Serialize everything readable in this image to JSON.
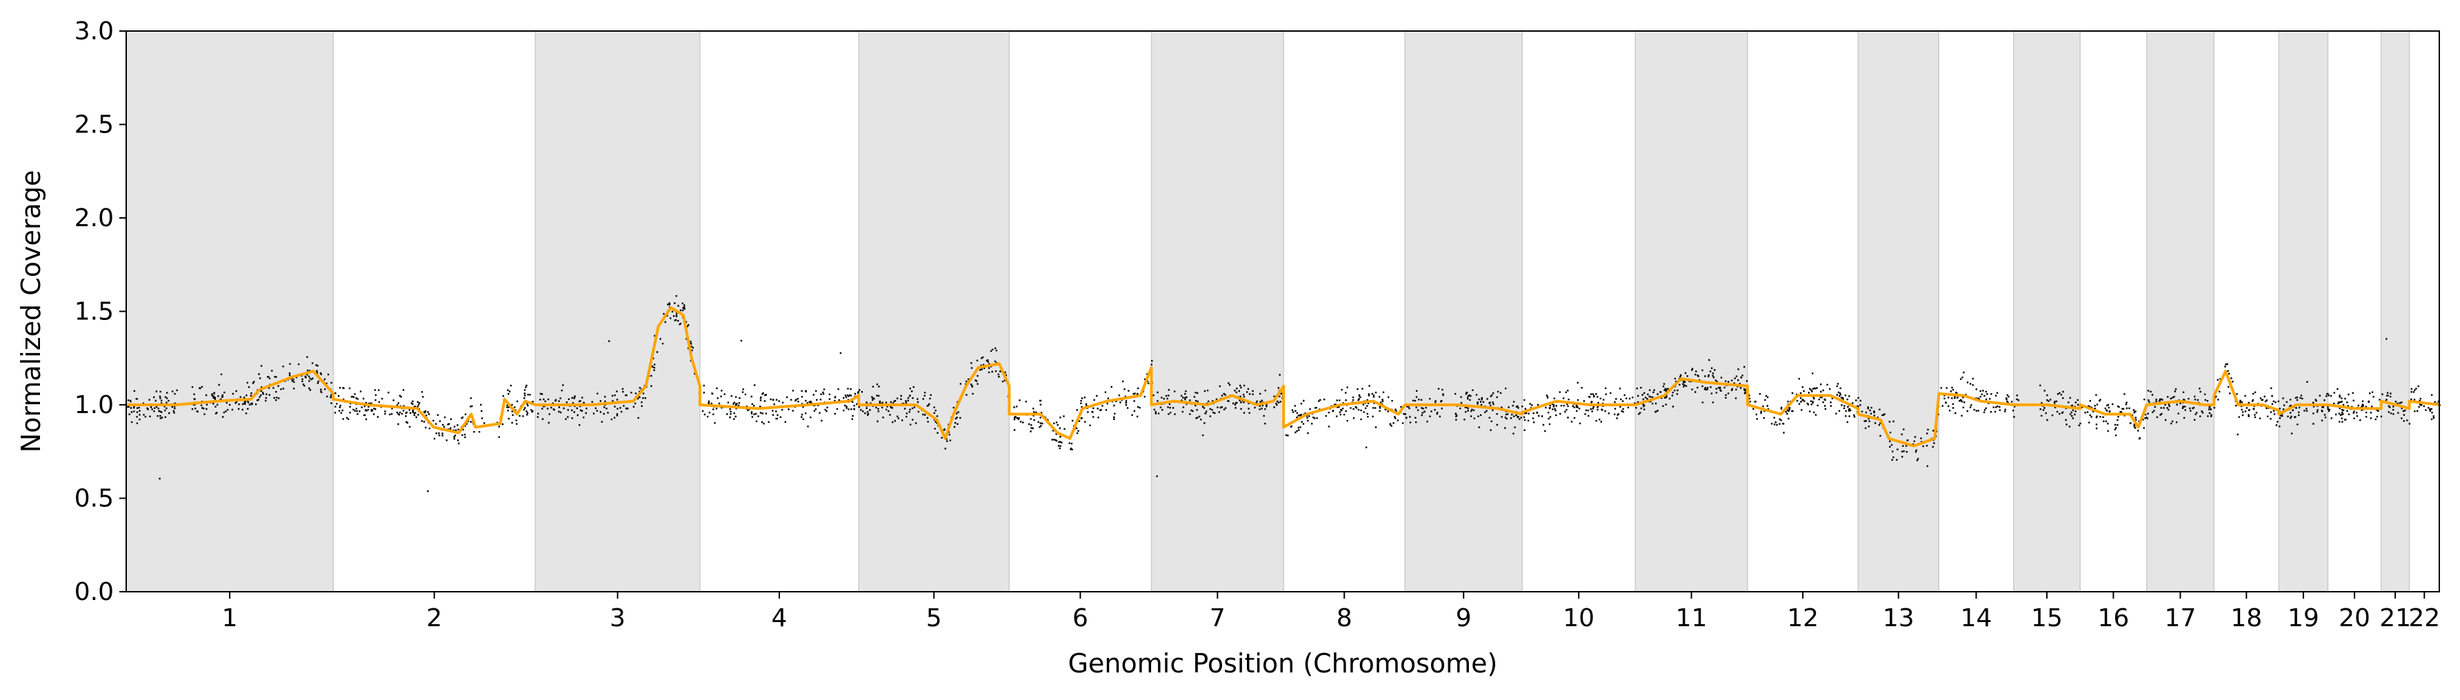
{
  "chart_data": {
    "type": "scatter",
    "title": "",
    "xlabel": "Genomic Position (Chromosome)",
    "ylabel": "Normalized Coverage",
    "ylim": [
      0,
      3
    ],
    "yticks": [
      "0.0",
      "0.5",
      "1.0",
      "1.5",
      "2.0",
      "2.5",
      "3.0"
    ],
    "grid": false,
    "legend": "none",
    "colors": {
      "points": "#000000",
      "smoothed": "#FFA500",
      "shade": "#E5E5E5",
      "shade_edge": "#CCCCCC"
    },
    "chromosomes": [
      {
        "label": "1",
        "length": 249
      },
      {
        "label": "2",
        "length": 243
      },
      {
        "label": "3",
        "length": 198
      },
      {
        "label": "4",
        "length": 191
      },
      {
        "label": "5",
        "length": 181
      },
      {
        "label": "6",
        "length": 171
      },
      {
        "label": "7",
        "length": 159
      },
      {
        "label": "8",
        "length": 146
      },
      {
        "label": "9",
        "length": 141
      },
      {
        "label": "10",
        "length": 136
      },
      {
        "label": "11",
        "length": 135
      },
      {
        "label": "12",
        "length": 133
      },
      {
        "label": "13",
        "length": 97
      },
      {
        "label": "14",
        "length": 90
      },
      {
        "label": "15",
        "length": 80
      },
      {
        "label": "16",
        "length": 80
      },
      {
        "label": "17",
        "length": 81
      },
      {
        "label": "18",
        "length": 78
      },
      {
        "label": "19",
        "length": 59
      },
      {
        "label": "20",
        "length": 64
      },
      {
        "label": "21",
        "length": 34
      },
      {
        "label": "22",
        "length": 36
      }
    ],
    "smoothed_series": {
      "name": "",
      "points": [
        [
          0,
          1.0
        ],
        [
          60,
          1.0
        ],
        [
          110,
          1.02
        ],
        [
          150,
          1.03
        ],
        [
          160,
          1.08
        ],
        [
          200,
          1.15
        ],
        [
          225,
          1.18
        ],
        [
          249,
          1.06
        ],
        [
          249,
          1.03
        ],
        [
          290,
          1.0
        ],
        [
          350,
          0.98
        ],
        [
          370,
          0.88
        ],
        [
          400,
          0.85
        ],
        [
          415,
          0.95
        ],
        [
          420,
          0.88
        ],
        [
          450,
          0.9
        ],
        [
          455,
          1.03
        ],
        [
          470,
          0.95
        ],
        [
          480,
          1.02
        ],
        [
          492,
          1.0
        ],
        [
          492,
          1.0
        ],
        [
          560,
          1.0
        ],
        [
          610,
          1.02
        ],
        [
          625,
          1.1
        ],
        [
          640,
          1.42
        ],
        [
          655,
          1.52
        ],
        [
          670,
          1.48
        ],
        [
          680,
          1.25
        ],
        [
          690,
          1.1
        ],
        [
          690,
          1.0
        ],
        [
          760,
          0.98
        ],
        [
          820,
          1.0
        ],
        [
          870,
          1.02
        ],
        [
          881,
          1.05
        ],
        [
          881,
          1.0
        ],
        [
          950,
          1.0
        ],
        [
          975,
          0.92
        ],
        [
          985,
          0.82
        ],
        [
          995,
          0.95
        ],
        [
          1010,
          1.1
        ],
        [
          1025,
          1.2
        ],
        [
          1050,
          1.22
        ],
        [
          1062,
          1.1
        ],
        [
          1062,
          0.95
        ],
        [
          1100,
          0.95
        ],
        [
          1120,
          0.85
        ],
        [
          1135,
          0.82
        ],
        [
          1150,
          0.98
        ],
        [
          1180,
          1.02
        ],
        [
          1220,
          1.05
        ],
        [
          1233,
          1.2
        ],
        [
          1233,
          1.0
        ],
        [
          1260,
          1.02
        ],
        [
          1300,
          1.0
        ],
        [
          1330,
          1.05
        ],
        [
          1360,
          1.0
        ],
        [
          1380,
          1.02
        ],
        [
          1392,
          1.1
        ],
        [
          1392,
          0.88
        ],
        [
          1420,
          0.95
        ],
        [
          1460,
          1.0
        ],
        [
          1500,
          1.02
        ],
        [
          1530,
          0.95
        ],
        [
          1538,
          1.0
        ],
        [
          1538,
          1.0
        ],
        [
          1600,
          1.0
        ],
        [
          1650,
          0.98
        ],
        [
          1679,
          0.95
        ],
        [
          1679,
          0.96
        ],
        [
          1720,
          1.02
        ],
        [
          1760,
          1.0
        ],
        [
          1815,
          1.0
        ],
        [
          1815,
          1.0
        ],
        [
          1850,
          1.05
        ],
        [
          1870,
          1.14
        ],
        [
          1900,
          1.12
        ],
        [
          1950,
          1.1
        ],
        [
          1950,
          1.0
        ],
        [
          1990,
          0.95
        ],
        [
          2010,
          1.05
        ],
        [
          2050,
          1.05
        ],
        [
          2083,
          0.98
        ],
        [
          2083,
          0.95
        ],
        [
          2110,
          0.92
        ],
        [
          2120,
          0.82
        ],
        [
          2150,
          0.78
        ],
        [
          2175,
          0.82
        ],
        [
          2180,
          1.05
        ],
        [
          2180,
          1.06
        ],
        [
          2210,
          1.05
        ],
        [
          2230,
          1.02
        ],
        [
          2270,
          1.0
        ],
        [
          2270,
          1.0
        ],
        [
          2310,
          1.0
        ],
        [
          2350,
          0.98
        ],
        [
          2350,
          1.0
        ],
        [
          2380,
          0.95
        ],
        [
          2410,
          0.95
        ],
        [
          2420,
          0.88
        ],
        [
          2430,
          1.0
        ],
        [
          2430,
          1.0
        ],
        [
          2470,
          1.02
        ],
        [
          2500,
          1.0
        ],
        [
          2511,
          1.0
        ],
        [
          2511,
          1.05
        ],
        [
          2525,
          1.18
        ],
        [
          2540,
          1.0
        ],
        [
          2570,
          1.0
        ],
        [
          2589,
          0.97
        ],
        [
          2589,
          0.95
        ],
        [
          2610,
          1.0
        ],
        [
          2648,
          1.0
        ],
        [
          2648,
          1.0
        ],
        [
          2680,
          0.98
        ],
        [
          2712,
          0.98
        ],
        [
          2712,
          1.02
        ],
        [
          2730,
          1.0
        ],
        [
          2746,
          0.98
        ],
        [
          2746,
          1.02
        ],
        [
          2782,
          1.0
        ]
      ]
    },
    "coverage_points_summary": "dense black scatter around the smoothed line"
  }
}
